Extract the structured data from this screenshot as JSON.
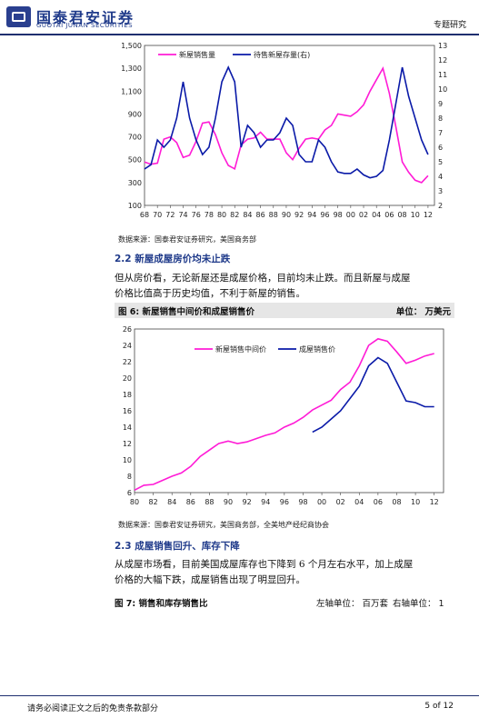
{
  "header": {
    "logo_cn": "国泰君安证券",
    "logo_en": "GUOTAI JUNAN SECURITIES",
    "report_type": "专题研究"
  },
  "chart_data": [
    {
      "type": "line",
      "legend": [
        "新屋销售量",
        "待售新屋存量(右)"
      ],
      "x_ticks": [
        "68",
        "70",
        "72",
        "74",
        "76",
        "78",
        "80",
        "82",
        "84",
        "86",
        "88",
        "90",
        "92",
        "94",
        "96",
        "98",
        "00",
        "02",
        "04",
        "06",
        "08",
        "10",
        "12"
      ],
      "y_left_ticks": [
        "1,500",
        "1,300",
        "1,100",
        "900",
        "700",
        "500",
        "300",
        "100"
      ],
      "y_right_ticks": [
        "13",
        "12",
        "11",
        "10",
        "9",
        "8",
        "7",
        "6",
        "5",
        "4",
        "3",
        "2"
      ],
      "xlim": [
        1968,
        2013
      ],
      "ylim": [
        100,
        1500
      ],
      "y2lim": [
        2,
        13
      ],
      "colors": [
        "#ff1bd6",
        "#0a1aa8"
      ],
      "series": [
        {
          "name": "新屋销售量",
          "axis": "left",
          "x": [
            1968,
            1969,
            1970,
            1971,
            1972,
            1973,
            1974,
            1975,
            1976,
            1977,
            1978,
            1979,
            1980,
            1981,
            1982,
            1983,
            1984,
            1985,
            1986,
            1987,
            1988,
            1989,
            1990,
            1991,
            1992,
            1993,
            1994,
            1995,
            1996,
            1997,
            1998,
            1999,
            2000,
            2001,
            2002,
            2003,
            2004,
            2005,
            2006,
            2007,
            2008,
            2009,
            2010,
            2011,
            2012
          ],
          "y": [
            480,
            460,
            470,
            680,
            700,
            650,
            520,
            540,
            660,
            820,
            830,
            720,
            560,
            450,
            420,
            630,
            680,
            690,
            740,
            680,
            680,
            680,
            560,
            500,
            600,
            680,
            690,
            680,
            760,
            800,
            900,
            890,
            880,
            920,
            980,
            1100,
            1200,
            1300,
            1080,
            790,
            480,
            390,
            320,
            300,
            360
          ]
        },
        {
          "name": "待售新屋存量(右)",
          "axis": "right",
          "x": [
            1968,
            1969,
            1970,
            1971,
            1972,
            1973,
            1974,
            1975,
            1976,
            1977,
            1978,
            1979,
            1980,
            1981,
            1982,
            1983,
            1984,
            1985,
            1986,
            1987,
            1988,
            1989,
            1990,
            1991,
            1992,
            1993,
            1994,
            1995,
            1996,
            1997,
            1998,
            1999,
            2000,
            2001,
            2002,
            2003,
            2004,
            2005,
            2006,
            2007,
            2008,
            2009,
            2010,
            2011,
            2012
          ],
          "y": [
            4.5,
            4.8,
            6.5,
            6.0,
            6.5,
            8.0,
            10.5,
            8.0,
            6.5,
            5.5,
            6.0,
            8.0,
            10.5,
            11.5,
            10.5,
            6.0,
            7.5,
            7.0,
            6.0,
            6.5,
            6.5,
            7.0,
            8.0,
            7.5,
            5.5,
            5.0,
            5.0,
            6.5,
            6.0,
            5.0,
            4.3,
            4.2,
            4.2,
            4.5,
            4.1,
            3.9,
            4.0,
            4.4,
            6.5,
            9.0,
            11.5,
            9.5,
            8.0,
            6.5,
            5.5
          ]
        }
      ]
    },
    {
      "type": "line",
      "legend": [
        "新屋销售中间价",
        "成屋销售价"
      ],
      "x_ticks": [
        "80",
        "82",
        "84",
        "86",
        "88",
        "90",
        "92",
        "94",
        "96",
        "98",
        "00",
        "02",
        "04",
        "06",
        "08",
        "10",
        "12"
      ],
      "y_ticks": [
        "26",
        "24",
        "22",
        "20",
        "18",
        "16",
        "14",
        "12",
        "10",
        "8",
        "6"
      ],
      "xlim": [
        1980,
        2013
      ],
      "ylim": [
        6,
        26
      ],
      "colors": [
        "#ff1bd6",
        "#0a1aa8"
      ],
      "series": [
        {
          "name": "新屋销售中间价",
          "x": [
            1980,
            1981,
            1982,
            1983,
            1984,
            1985,
            1986,
            1987,
            1988,
            1989,
            1990,
            1991,
            1992,
            1993,
            1994,
            1995,
            1996,
            1997,
            1998,
            1999,
            2000,
            2001,
            2002,
            2003,
            2004,
            2005,
            2006,
            2007,
            2008,
            2009,
            2010,
            2011,
            2012
          ],
          "y": [
            6.3,
            6.9,
            7.0,
            7.5,
            8.0,
            8.4,
            9.2,
            10.4,
            11.2,
            12.0,
            12.3,
            12.0,
            12.2,
            12.6,
            13.0,
            13.3,
            14.0,
            14.5,
            15.2,
            16.1,
            16.7,
            17.3,
            18.6,
            19.5,
            21.5,
            24.0,
            24.8,
            24.5,
            23.2,
            21.8,
            22.2,
            22.7,
            23.0
          ]
        },
        {
          "name": "成屋销售价",
          "x": [
            1999,
            2000,
            2001,
            2002,
            2003,
            2004,
            2005,
            2006,
            2007,
            2008,
            2009,
            2010,
            2011,
            2012
          ],
          "y": [
            13.4,
            14.0,
            15.0,
            16.0,
            17.5,
            19.0,
            21.5,
            22.5,
            21.8,
            19.5,
            17.2,
            17.0,
            16.5,
            16.5
          ]
        }
      ]
    }
  ],
  "fig5": {
    "source": "数据来源：国泰君安证券研究，美国商务部"
  },
  "section22": {
    "title": "2.2  新屋成屋房价均未止跌",
    "text1": "但从房价看，无论新屋还是成屋价格，目前均未止跌。而且新屋与成屋",
    "text2": "价格比值高于历史均值，不利于新屋的销售。"
  },
  "fig6": {
    "title": "图 6:  新屋销售中间价和成屋销售价",
    "unit": "单位：  万美元",
    "source": "数据来源：国泰君安证券研究，美国商务部，全美地产经纪商协会"
  },
  "section23": {
    "title": "2.3  成屋销售回升、库存下降",
    "text1": "从成屋市场看，目前美国成屋库存也下降到 6 个月左右水平，加上成屋",
    "text2": "价格的大幅下跌，成屋销售出现了明显回升。"
  },
  "fig7": {
    "title": "图 7:  销售和库存销售比",
    "unit_left": "左轴单位：  百万套",
    "unit_right": "右轴单位：  1"
  },
  "footer": {
    "disclaimer": "请务必阅读正文之后的免责条款部分",
    "page": "5 of 12"
  }
}
